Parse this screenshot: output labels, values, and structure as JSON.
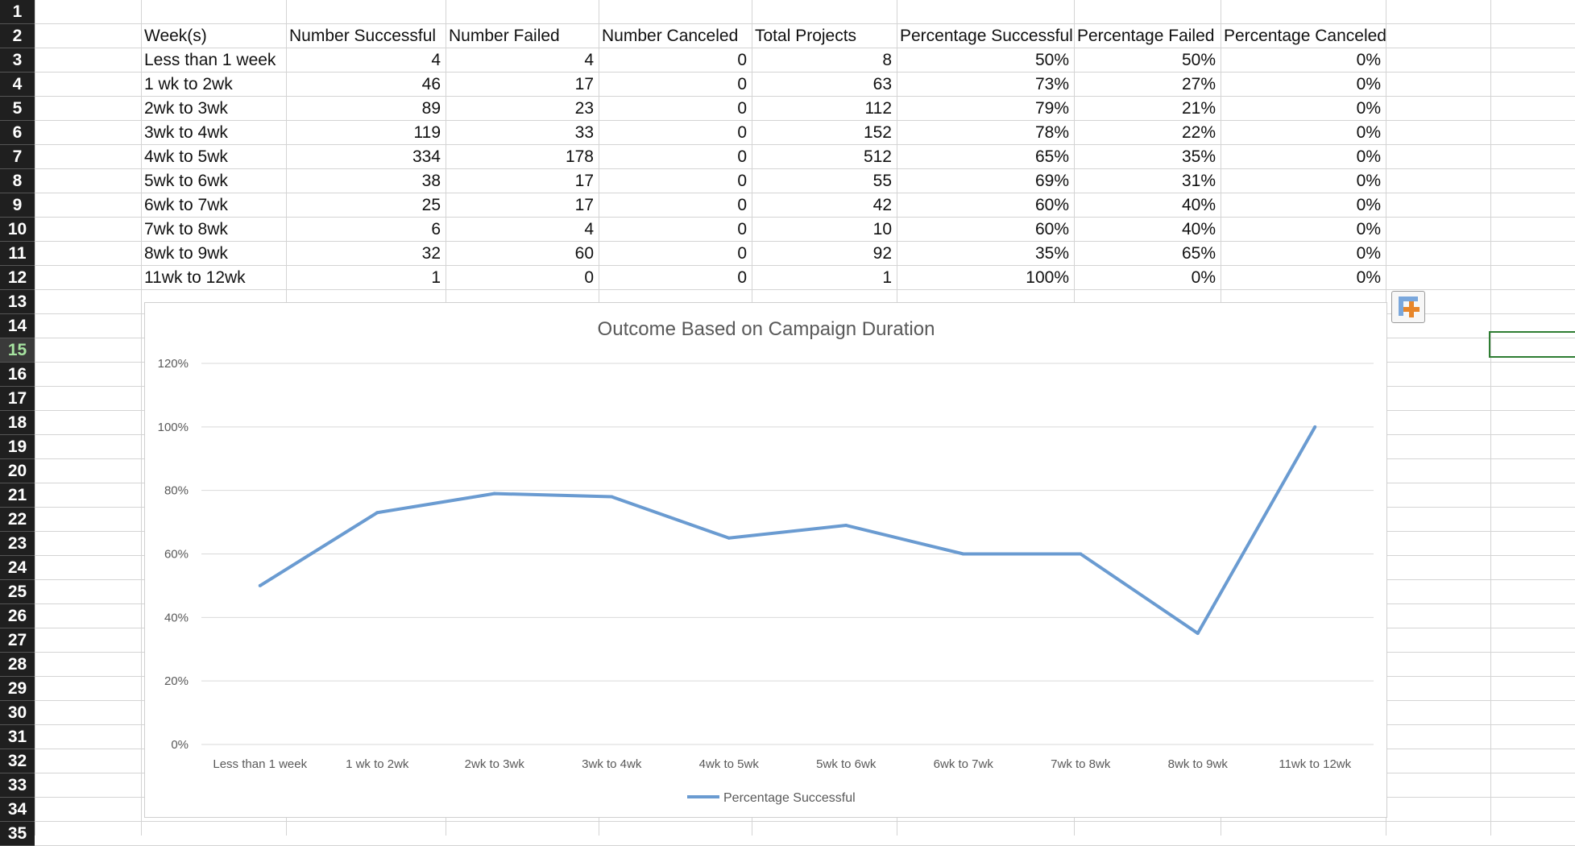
{
  "sheet": {
    "row_numbers": [
      "1",
      "2",
      "3",
      "4",
      "5",
      "6",
      "7",
      "8",
      "9",
      "10",
      "11",
      "12",
      "13",
      "14",
      "15",
      "16",
      "17",
      "18",
      "19",
      "20",
      "21",
      "22",
      "23",
      "24",
      "25",
      "26",
      "27",
      "28",
      "29",
      "30",
      "31",
      "32",
      "33",
      "34",
      "35"
    ],
    "selected_row": "15",
    "headers": [
      "Week(s)",
      "Number Successful",
      "Number Failed",
      "Number Canceled",
      "Total Projects",
      "Percentage Successful",
      "Percentage Failed",
      "Percentage Canceled"
    ],
    "rows": [
      [
        "Less than 1 week",
        "4",
        "4",
        "0",
        "8",
        "50%",
        "50%",
        "0%"
      ],
      [
        "1 wk to 2wk",
        "46",
        "17",
        "0",
        "63",
        "73%",
        "27%",
        "0%"
      ],
      [
        "2wk to 3wk",
        "89",
        "23",
        "0",
        "112",
        "79%",
        "21%",
        "0%"
      ],
      [
        "3wk to 4wk",
        "119",
        "33",
        "0",
        "152",
        "78%",
        "22%",
        "0%"
      ],
      [
        "4wk to 5wk",
        "334",
        "178",
        "0",
        "512",
        "65%",
        "35%",
        "0%"
      ],
      [
        "5wk to 6wk",
        "38",
        "17",
        "0",
        "55",
        "69%",
        "31%",
        "0%"
      ],
      [
        "6wk to 7wk",
        "25",
        "17",
        "0",
        "42",
        "60%",
        "40%",
        "0%"
      ],
      [
        "7wk to 8wk",
        "6",
        "4",
        "0",
        "10",
        "60%",
        "40%",
        "0%"
      ],
      [
        "8wk to 9wk",
        "32",
        "60",
        "0",
        "92",
        "35%",
        "65%",
        "0%"
      ],
      [
        "11wk to 12wk",
        "1",
        "0",
        "0",
        "1",
        "100%",
        "0%",
        "0%"
      ]
    ]
  },
  "colors": {
    "line": "#6a9bd1",
    "gridline": "#d9d9d9",
    "axis_text": "#595959",
    "title_text": "#595959",
    "selection": "#2e7d32",
    "chart_button_accent": "#e8862a",
    "chart_button_blue": "#7aa7dc"
  },
  "chart_button": {
    "icon": "chart-elements-plus-icon"
  },
  "chart_data": {
    "type": "line",
    "title": "Outcome Based on Campaign Duration",
    "categories": [
      "Less than 1 week",
      "1 wk to 2wk",
      "2wk to 3wk",
      "3wk to 4wk",
      "4wk to 5wk",
      "5wk to 6wk",
      "6wk to 7wk",
      "7wk to 8wk",
      "8wk to 9wk",
      "11wk to 12wk"
    ],
    "series": [
      {
        "name": "Percentage Successful",
        "values": [
          0.5,
          0.73,
          0.79,
          0.78,
          0.65,
          0.69,
          0.6,
          0.6,
          0.35,
          1.0
        ]
      }
    ],
    "ylim": [
      0,
      1.2
    ],
    "yticks": [
      0,
      0.2,
      0.4,
      0.6,
      0.8,
      1.0,
      1.2
    ],
    "ytick_labels": [
      "0%",
      "20%",
      "40%",
      "60%",
      "80%",
      "100%",
      "120%"
    ],
    "grid": true,
    "legend": "bottom",
    "xlabel": "",
    "ylabel": ""
  }
}
